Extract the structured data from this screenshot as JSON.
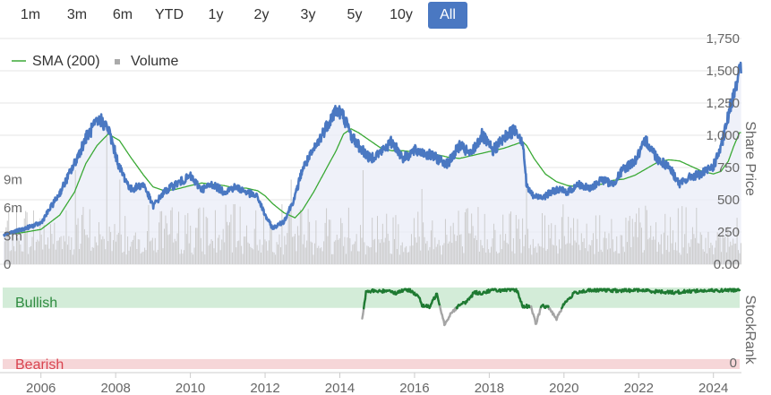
{
  "range_selector": {
    "buttons": [
      {
        "label": "1m"
      },
      {
        "label": "3m"
      },
      {
        "label": "6m"
      },
      {
        "label": "YTD"
      },
      {
        "label": "1y"
      },
      {
        "label": "2y"
      },
      {
        "label": "3y"
      },
      {
        "label": "5y"
      },
      {
        "label": "10y"
      },
      {
        "label": "All"
      }
    ],
    "active": "All"
  },
  "colors": {
    "price": "#4a78c2",
    "sma": "#3aa935",
    "volume": "#cccccc",
    "bullish_band": "#d3ecd8",
    "bearish_band": "#f6d6d8",
    "stockrank_bull": "#1f7a32",
    "stockrank_neutral": "#a5a5a5",
    "bullish_text": "#2e8b3f",
    "bearish_text": "#d9434f"
  },
  "chart_data": [
    {
      "type": "line",
      "title": "",
      "legend": [
        "SMA (200)",
        "Volume"
      ],
      "legend_position": "top-left",
      "ylabel_right": "Share Price",
      "y_right_ticks": [
        "0.00",
        "250",
        "500",
        "750",
        "1,000",
        "1,250",
        "1,500",
        "1,750"
      ],
      "y_right_range": [
        0,
        1750
      ],
      "ylabel_left_ticks": [
        "0",
        "3m",
        "6m",
        "9m"
      ],
      "volume_range_millions": [
        0,
        24
      ],
      "x_range": [
        2005.0,
        2024.75
      ],
      "x_ticks": [
        "2006",
        "2008",
        "2010",
        "2012",
        "2014",
        "2016",
        "2018",
        "2020",
        "2022",
        "2024"
      ],
      "series": [
        {
          "name": "Share Price",
          "x": [
            2005.0,
            2005.5,
            2006.0,
            2006.5,
            2006.9,
            2007.2,
            2007.45,
            2007.6,
            2007.8,
            2008.1,
            2008.4,
            2008.75,
            2009.0,
            2009.3,
            2009.6,
            2010.0,
            2010.3,
            2010.6,
            2010.9,
            2011.2,
            2011.5,
            2011.8,
            2012.0,
            2012.2,
            2012.5,
            2012.8,
            2013.0,
            2013.3,
            2013.6,
            2013.9,
            2014.1,
            2014.3,
            2014.5,
            2014.8,
            2015.1,
            2015.4,
            2015.7,
            2016.0,
            2016.3,
            2016.6,
            2016.9,
            2017.2,
            2017.5,
            2017.8,
            2018.1,
            2018.4,
            2018.7,
            2018.9,
            2019.0,
            2019.2,
            2019.5,
            2019.8,
            2020.1,
            2020.4,
            2020.7,
            2021.0,
            2021.3,
            2021.6,
            2021.9,
            2022.2,
            2022.5,
            2022.8,
            2023.1,
            2023.4,
            2023.7,
            2024.0,
            2024.2,
            2024.4,
            2024.55,
            2024.7
          ],
          "values": [
            230,
            270,
            320,
            550,
            780,
            980,
            1080,
            1120,
            1050,
            750,
            580,
            620,
            450,
            560,
            620,
            680,
            580,
            620,
            560,
            600,
            560,
            520,
            380,
            280,
            330,
            520,
            740,
            880,
            1050,
            1200,
            1150,
            1000,
            920,
            820,
            870,
            950,
            820,
            880,
            860,
            820,
            780,
            920,
            850,
            1000,
            880,
            980,
            1050,
            950,
            600,
            520,
            530,
            580,
            560,
            620,
            580,
            660,
            620,
            740,
            800,
            960,
            820,
            760,
            620,
            680,
            700,
            760,
            900,
            1150,
            1350,
            1500
          ]
        },
        {
          "name": "SMA (200)",
          "x": [
            2005.0,
            2005.5,
            2006.0,
            2006.5,
            2006.9,
            2007.2,
            2007.5,
            2007.8,
            2008.1,
            2008.4,
            2008.75,
            2009.0,
            2009.3,
            2009.6,
            2010.0,
            2010.3,
            2010.6,
            2010.9,
            2011.2,
            2011.5,
            2011.8,
            2012.0,
            2012.2,
            2012.5,
            2012.8,
            2013.0,
            2013.3,
            2013.6,
            2013.9,
            2014.1,
            2014.3,
            2014.5,
            2014.8,
            2015.1,
            2015.4,
            2015.7,
            2016.0,
            2016.3,
            2016.6,
            2016.9,
            2017.2,
            2017.5,
            2017.8,
            2018.1,
            2018.4,
            2018.7,
            2018.9,
            2019.0,
            2019.2,
            2019.5,
            2019.8,
            2020.1,
            2020.4,
            2020.7,
            2021.0,
            2021.3,
            2021.6,
            2021.9,
            2022.2,
            2022.5,
            2022.8,
            2023.1,
            2023.4,
            2023.7,
            2024.0,
            2024.2,
            2024.4,
            2024.55,
            2024.7
          ],
          "values": [
            230,
            245,
            270,
            380,
            560,
            780,
            920,
            1010,
            960,
            830,
            690,
            600,
            570,
            580,
            610,
            630,
            620,
            610,
            590,
            590,
            570,
            530,
            470,
            400,
            360,
            420,
            560,
            720,
            880,
            1010,
            1050,
            1020,
            960,
            900,
            880,
            880,
            870,
            860,
            850,
            830,
            820,
            840,
            860,
            880,
            900,
            930,
            950,
            920,
            820,
            700,
            640,
            610,
            600,
            610,
            620,
            650,
            660,
            690,
            740,
            790,
            810,
            800,
            760,
            720,
            700,
            720,
            800,
            920,
            1020
          ]
        },
        {
          "name": "Volume",
          "unit": "millions",
          "typical_range": [
            1,
            7
          ],
          "peaks": [
            {
              "x": 2007.75,
              "value": 15
            },
            {
              "x": 2006.9,
              "value": 10
            },
            {
              "x": 2008.1,
              "value": 9
            },
            {
              "x": 2012.7,
              "value": 9
            },
            {
              "x": 2014.6,
              "value": 10
            },
            {
              "x": 2016.2,
              "value": 8
            },
            {
              "x": 2019.0,
              "value": 8
            }
          ]
        }
      ]
    },
    {
      "type": "line",
      "ylabel_right": "StockRank",
      "y_range": [
        0,
        100
      ],
      "y_right_ticks": [
        "0"
      ],
      "bands": [
        {
          "label": "Bullish",
          "from": 75,
          "to": 100
        },
        {
          "label": "Bearish",
          "from": 0,
          "to": 10
        }
      ],
      "series": [
        {
          "name": "StockRank",
          "x": [
            2014.6,
            2014.7,
            2014.9,
            2015.1,
            2015.3,
            2015.5,
            2015.7,
            2015.9,
            2016.1,
            2016.2,
            2016.4,
            2016.6,
            2016.8,
            2017.0,
            2017.2,
            2017.4,
            2017.6,
            2017.8,
            2018.0,
            2018.2,
            2018.4,
            2018.6,
            2018.75,
            2018.9,
            2019.1,
            2019.25,
            2019.4,
            2019.6,
            2019.8,
            2020.0,
            2020.3,
            2020.6,
            2021.0,
            2021.5,
            2022.0,
            2022.5,
            2023.0,
            2023.5,
            2024.0,
            2024.4,
            2024.7
          ],
          "values": [
            62,
            94,
            96,
            95,
            97,
            93,
            97,
            96,
            90,
            78,
            76,
            93,
            55,
            70,
            78,
            83,
            94,
            93,
            96,
            97,
            96,
            97,
            96,
            76,
            78,
            55,
            78,
            75,
            62,
            80,
            94,
            96,
            97,
            96,
            97,
            95,
            94,
            96,
            96,
            97,
            97
          ]
        }
      ]
    }
  ]
}
